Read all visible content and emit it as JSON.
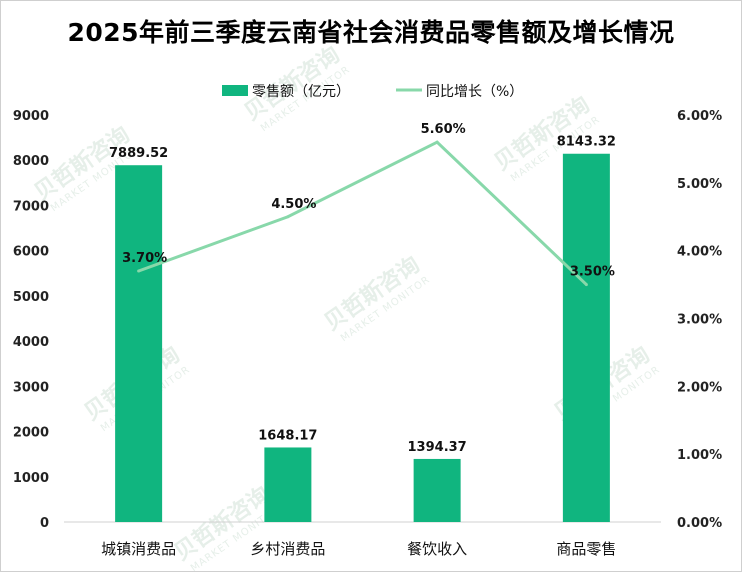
{
  "title": "2025年前三季度云南省社会消费品零售额及增长情况",
  "watermark": {
    "cn": "贝哲斯咨询",
    "en": "MARKET MONITOR"
  },
  "colors": {
    "bar": "#10b57f",
    "line": "#88d8aa",
    "text": "#222222"
  },
  "chart_data": {
    "type": "bar+line",
    "categories": [
      "城镇消费品",
      "乡村消费品",
      "餐饮收入",
      "商品零售"
    ],
    "series": [
      {
        "name": "零售额（亿元）",
        "type": "bar",
        "axis": "left",
        "values": [
          7889.52,
          1648.17,
          1394.37,
          8143.32
        ],
        "labels": [
          "7889.52",
          "1648.17",
          "1394.37",
          "8143.32"
        ]
      },
      {
        "name": "同比增长（%）",
        "type": "line",
        "axis": "right",
        "values": [
          3.7,
          4.5,
          5.6,
          3.5
        ],
        "labels": [
          "3.70%",
          "4.50%",
          "5.60%",
          "3.50%"
        ]
      }
    ],
    "left_axis": {
      "min": 0,
      "max": 9000,
      "ticks": [
        "0",
        "1000",
        "2000",
        "3000",
        "4000",
        "5000",
        "6000",
        "7000",
        "8000",
        "9000"
      ]
    },
    "right_axis": {
      "min": 0,
      "max": 6,
      "ticks": [
        "0.00%",
        "1.00%",
        "2.00%",
        "3.00%",
        "4.00%",
        "5.00%",
        "6.00%"
      ]
    },
    "legend_position": "top-center",
    "grid": false
  }
}
